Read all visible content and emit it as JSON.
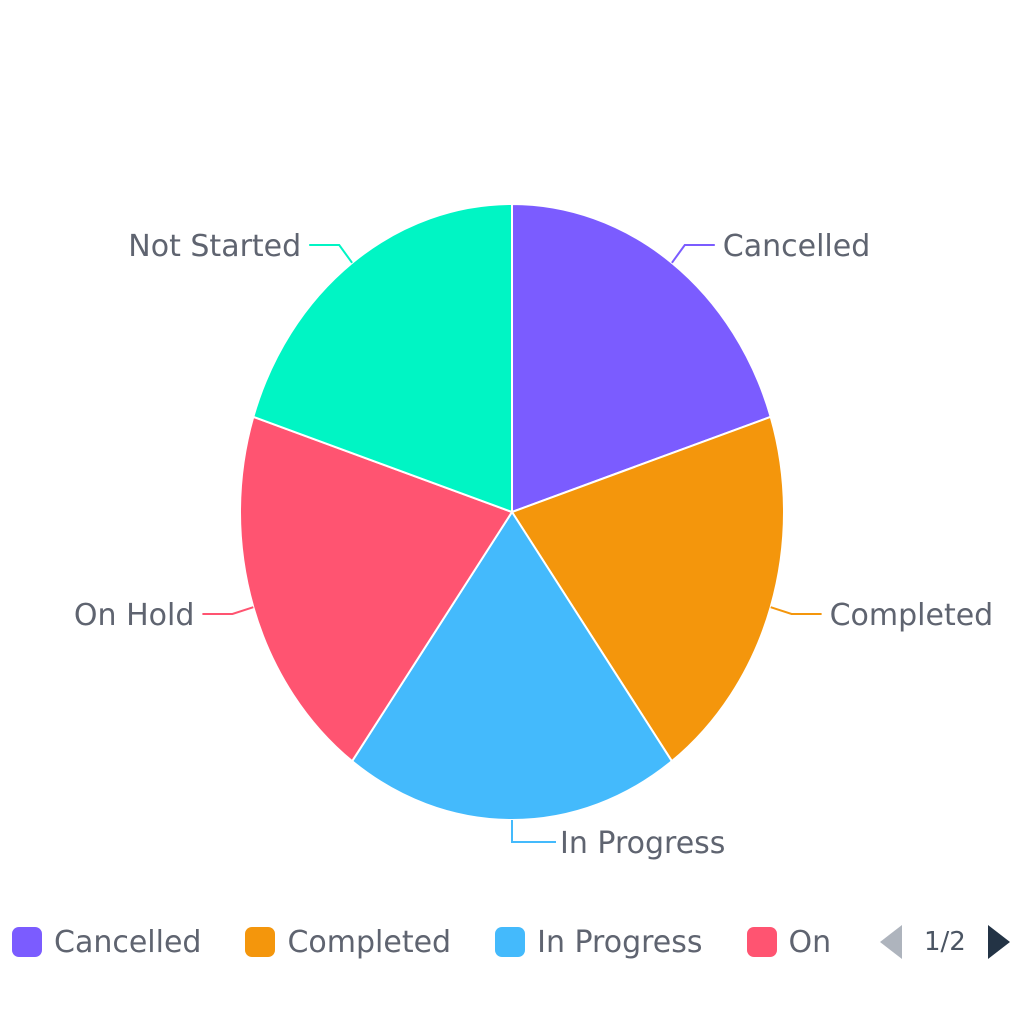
{
  "chart_data": {
    "type": "pie",
    "slices": [
      {
        "label": "Cancelled",
        "value": 20,
        "color": "#7b5cff"
      },
      {
        "label": "Completed",
        "value": 20,
        "color": "#f4960c"
      },
      {
        "label": "In Progress",
        "value": 20,
        "color": "#44bafc"
      },
      {
        "label": "On Hold",
        "value": 20,
        "color": "#ff5471"
      },
      {
        "label": "Not Started",
        "value": 20,
        "color": "#00f5c4"
      }
    ],
    "start_angle_deg": 0,
    "direction": "clockwise",
    "legend_position": "bottom"
  },
  "legend": {
    "items": [
      {
        "label": "Cancelled",
        "color": "#7b5cff"
      },
      {
        "label": "Completed",
        "color": "#f4960c"
      },
      {
        "label": "In Progress",
        "color": "#44bafc"
      },
      {
        "label": "On Hold",
        "color": "#ff5471"
      }
    ],
    "pager": {
      "text": "1/2"
    }
  }
}
